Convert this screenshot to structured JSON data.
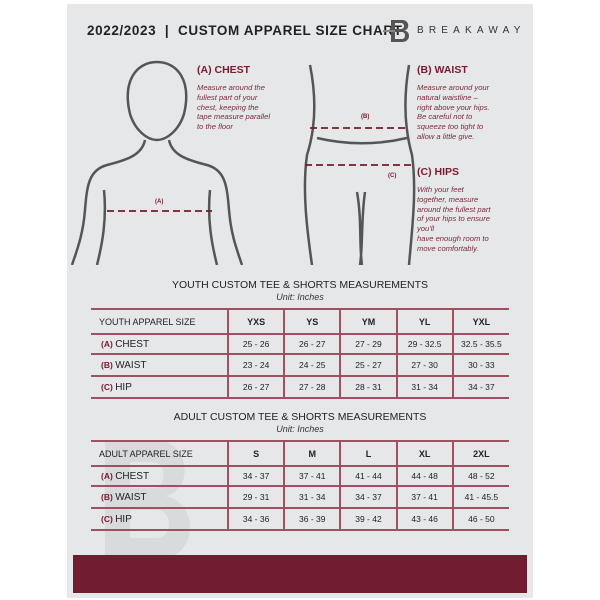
{
  "header": {
    "title": "2022/2023  |  CUSTOM APPAREL SIZE CHART",
    "brand": "BREAKAWAY",
    "logo_letter": "B"
  },
  "guide": {
    "chest": {
      "title": "(A) CHEST",
      "desc": "Measure around the\nfullest part of your\nchest, keeping the\ntape measure parallel\nto the floor",
      "tag": "(A)"
    },
    "waist": {
      "title": "(B) WAIST",
      "desc": "Measure around your\nnatural waistline –\nright above your hips.\nBe careful not to\nsqueeze too tight to\nallow a little give.",
      "tag": "(B)"
    },
    "hips": {
      "title": "(C) HIPS",
      "desc": "With your feet\ntogether, measure\naround the fullest part\nof your hips to ensure\nyou'll\nhave enough room to\nmove comfortably.",
      "tag": "(C)"
    }
  },
  "youth": {
    "title": "YOUTH CUSTOM TEE & SHORTS MEASUREMENTS",
    "unit": "Unit: Inches",
    "header": "YOUTH APPAREL SIZE",
    "sizes": [
      "YXS",
      "YS",
      "YM",
      "YL",
      "YXL"
    ],
    "rows": [
      {
        "letter": "(A)",
        "name": "CHEST",
        "values": [
          "25 - 26",
          "26 - 27",
          "27 - 29",
          "29 - 32.5",
          "32.5 - 35.5"
        ]
      },
      {
        "letter": "(B)",
        "name": "WAIST",
        "values": [
          "23 - 24",
          "24 - 25",
          "25 - 27",
          "27 - 30",
          "30 - 33"
        ]
      },
      {
        "letter": "(C)",
        "name": "HIP",
        "values": [
          "26 - 27",
          "27 - 28",
          "28 - 31",
          "31 - 34",
          "34 - 37"
        ]
      }
    ]
  },
  "adult": {
    "title": "ADULT CUSTOM TEE & SHORTS MEASUREMENTS",
    "unit": "Unit: Inches",
    "header": "ADULT APPAREL SIZE",
    "sizes": [
      "S",
      "M",
      "L",
      "XL",
      "2XL"
    ],
    "rows": [
      {
        "letter": "(A)",
        "name": "CHEST",
        "values": [
          "34 - 37",
          "37 - 41",
          "41 - 44",
          "44 - 48",
          "48 - 52"
        ]
      },
      {
        "letter": "(B)",
        "name": "WAIST",
        "values": [
          "29 - 31",
          "31 - 34",
          "34 - 37",
          "37 - 41",
          "41 - 45.5"
        ]
      },
      {
        "letter": "(C)",
        "name": "HIP",
        "values": [
          "34 - 36",
          "36 - 39",
          "39 - 42",
          "43 - 46",
          "46 - 50"
        ]
      }
    ]
  },
  "colors": {
    "accent": "#721c30",
    "panel": "#e6e7e9"
  }
}
